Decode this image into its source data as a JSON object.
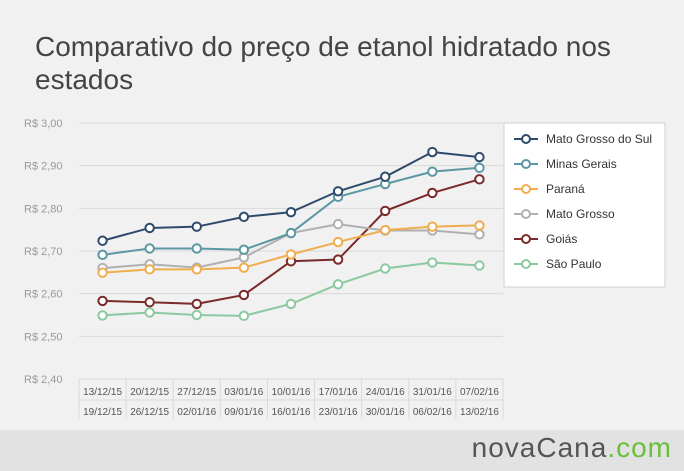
{
  "title": "Comparativo do preço de etanol hidratado nos estados",
  "brand": {
    "main": "novaCana",
    "tld": ".com"
  },
  "chart_data": {
    "type": "line",
    "ylim": [
      2.4,
      3.0
    ],
    "y_ticks": [
      {
        "value": 2.4,
        "label": "R$ 2,40"
      },
      {
        "value": 2.5,
        "label": "R$ 2,50"
      },
      {
        "value": 2.6,
        "label": "R$ 2,60"
      },
      {
        "value": 2.7,
        "label": "R$ 2,70"
      },
      {
        "value": 2.8,
        "label": "R$ 2,80"
      },
      {
        "value": 2.9,
        "label": "R$ 2,90"
      },
      {
        "value": 3.0,
        "label": "R$ 3,00"
      }
    ],
    "grid": "horizontal",
    "legend_position": "right",
    "categories": [
      {
        "start": "13/12/15",
        "end": "19/12/15"
      },
      {
        "start": "20/12/15",
        "end": "26/12/15"
      },
      {
        "start": "27/12/15",
        "end": "02/01/16"
      },
      {
        "start": "03/01/16",
        "end": "09/01/16"
      },
      {
        "start": "10/01/16",
        "end": "16/01/16"
      },
      {
        "start": "17/01/16",
        "end": "23/01/16"
      },
      {
        "start": "24/01/16",
        "end": "30/01/16"
      },
      {
        "start": "31/01/16",
        "end": "06/02/16"
      },
      {
        "start": "07/02/16",
        "end": "13/02/16"
      }
    ],
    "series": [
      {
        "name": "Mato Grosso do Sul",
        "color": "#2e4a6b",
        "values": [
          2.724,
          2.754,
          2.757,
          2.78,
          2.791,
          2.84,
          2.874,
          2.932,
          2.92
        ]
      },
      {
        "name": "Minas Gerais",
        "color": "#5b98a3",
        "values": [
          2.691,
          2.706,
          2.706,
          2.703,
          2.742,
          2.827,
          2.857,
          2.886,
          2.895
        ]
      },
      {
        "name": "Paraná",
        "color": "#f0ad4e",
        "values": [
          2.649,
          2.657,
          2.657,
          2.661,
          2.692,
          2.721,
          2.749,
          2.757,
          2.76
        ]
      },
      {
        "name": "Mato Grosso",
        "color": "#b0b0b0",
        "values": [
          2.66,
          2.669,
          2.661,
          2.685,
          2.742,
          2.763,
          2.748,
          2.748,
          2.739
        ]
      },
      {
        "name": "Goiás",
        "color": "#7b2a2a",
        "values": [
          2.583,
          2.58,
          2.576,
          2.597,
          2.676,
          2.68,
          2.794,
          2.836,
          2.868
        ]
      },
      {
        "name": "São Paulo",
        "color": "#8cc8a0",
        "values": [
          2.549,
          2.556,
          2.55,
          2.548,
          2.576,
          2.622,
          2.659,
          2.673,
          2.666
        ]
      }
    ]
  }
}
